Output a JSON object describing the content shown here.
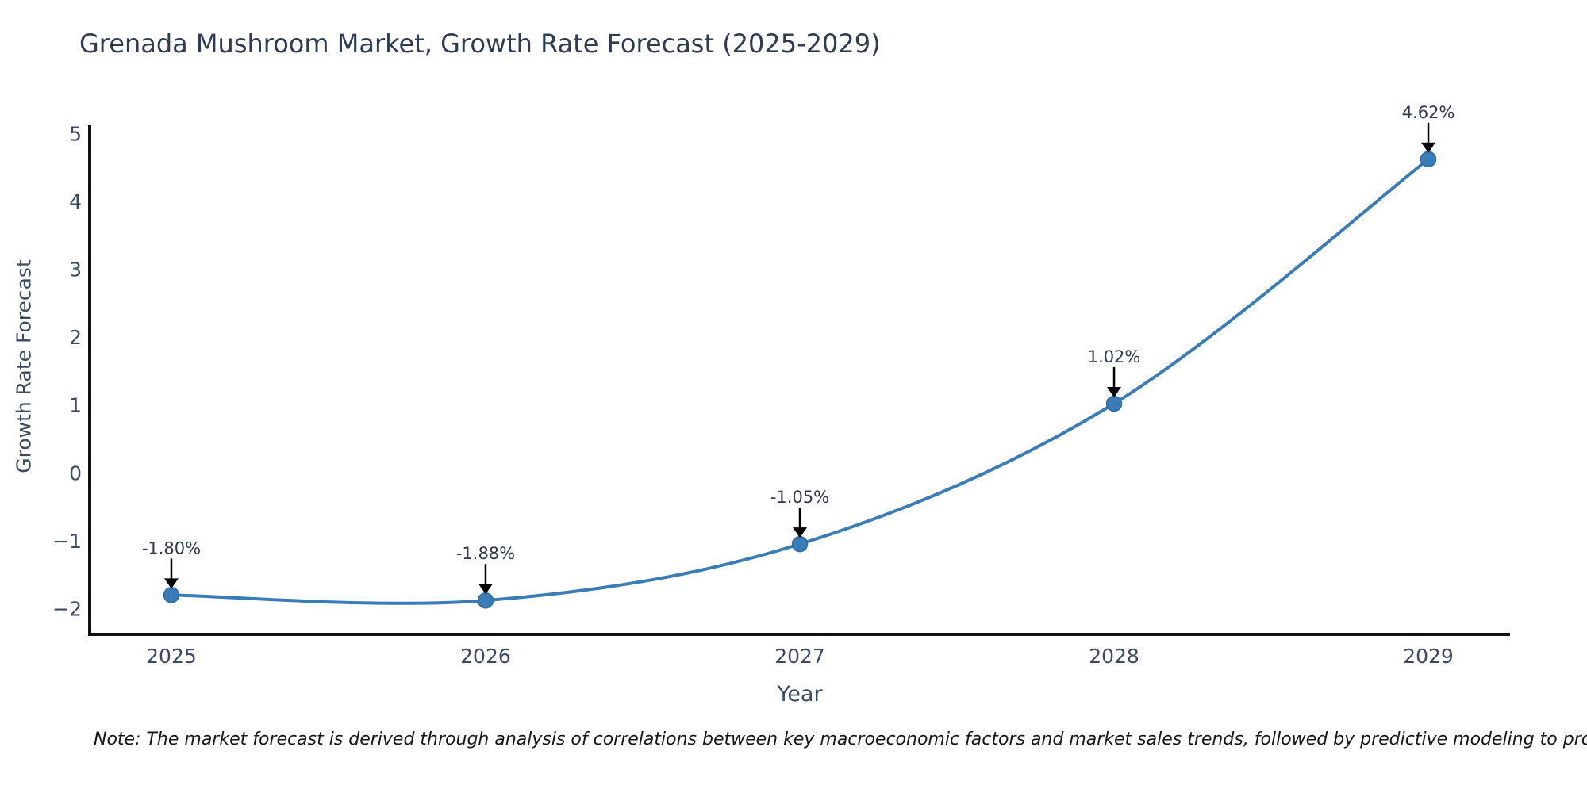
{
  "chart_data": {
    "type": "line",
    "title": "Grenada Mushroom Market, Growth Rate Forecast (2025-2029)",
    "xlabel": "Year",
    "ylabel": "Growth Rate Forecast",
    "x": [
      2025,
      2026,
      2027,
      2028,
      2029
    ],
    "series": [
      {
        "name": "Growth Rate Forecast",
        "values": [
          -1.8,
          -1.88,
          -1.05,
          1.02,
          4.62
        ]
      }
    ],
    "point_labels": [
      "-1.80%",
      "-1.88%",
      "-1.05%",
      "1.02%",
      "4.62%"
    ],
    "xtick_labels": [
      "2025",
      "2026",
      "2027",
      "2028",
      "2029"
    ],
    "yticks": [
      5,
      4,
      3,
      2,
      1,
      0,
      -1,
      -2
    ],
    "ytick_labels": [
      "5",
      "4",
      "3",
      "2",
      "1",
      "0",
      "−1",
      "−2"
    ],
    "xlim": [
      2024.74,
      2029.26
    ],
    "ylim": [
      -2.38,
      5.12
    ],
    "grid": false,
    "legend": "none",
    "smooth": true,
    "line_color": "#3a7cb8",
    "marker_color": "#3a7cb8",
    "marker_edge_color": "#2e6da4",
    "annotation_arrow_color": "#000000"
  },
  "note": {
    "text": "Note: The market forecast is derived through analysis of correlations between key macroeconomic factors and market sales trends, followed by predictive modeling to project future sales"
  },
  "colors": {
    "title_text": "#2e3b55",
    "axis_text": "#3b4a63",
    "annotation_text": "#2d3947",
    "note_text": "#161616",
    "spine": "#111111",
    "background": "#ffffff"
  }
}
